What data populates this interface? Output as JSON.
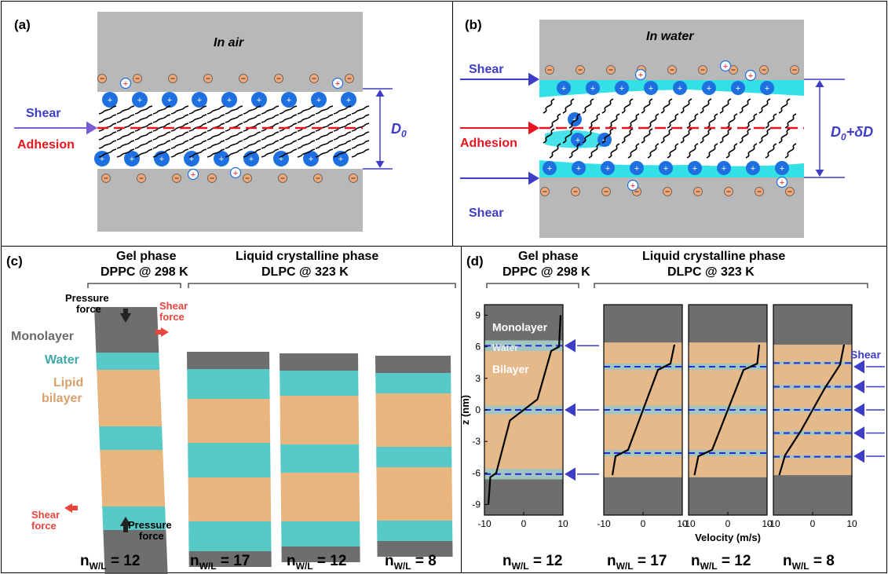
{
  "panel_a": {
    "letter": "(a)",
    "medium": "In air",
    "shear": "Shear",
    "adhesion": "Adhesion",
    "distance": "D",
    "distance_sub": "0"
  },
  "panel_b": {
    "letter": "(b)",
    "medium": "In water",
    "shear_top": "Shear",
    "shear_bottom": "Shear",
    "adhesion": "Adhesion",
    "distance": "D",
    "distance_sub": "0",
    "distance_suffix": "+δD"
  },
  "panel_c": {
    "letter": "(c)",
    "gel_title": "Gel phase",
    "gel_subtitle": "DPPC @ 298 K",
    "lc_title": "Liquid crystalline phase",
    "lc_subtitle": "DLPC @ 323 K",
    "pressure_top": "Pressure",
    "pressure_top2": "force",
    "shear_top": "Shear",
    "shear_top2": "force",
    "monolayer": "Monolayer",
    "water": "Water",
    "lipid": "Lipid",
    "bilayer": "bilayer",
    "shear_bottom": "Shear",
    "shear_bottom2": "force",
    "pressure_bottom": "Pressure",
    "pressure_bottom2": "force",
    "n_labels": [
      "12",
      "17",
      "12",
      "8"
    ]
  },
  "panel_d": {
    "letter": "(d)",
    "gel_title": "Gel phase",
    "gel_subtitle": "DPPC @ 298 K",
    "lc_title": "Liquid crystalline phase",
    "lc_subtitle": "DLPC @ 323 K",
    "monolayer": "Monolayer",
    "water": "Water",
    "bilayer": "Bilayer",
    "shear": "Shear",
    "ylabel": "z (nm)",
    "xlabel": "Velocity (m/s)",
    "n_labels": [
      "12",
      "17",
      "12",
      "8"
    ]
  },
  "n_prefix": "n",
  "n_sub": "W/L",
  "n_eq": " = ",
  "colors": {
    "shear_arrow": "#3d3dc8",
    "adhesion": "#e8141e",
    "ion_blue": "#1e6fe0",
    "counter_ion": "#f0a878",
    "water_cyan": "#33e0e6",
    "gray_surface": "#b8b8b8",
    "bilayer_tan": "#e6b98a",
    "water_band": "#9fc6c1",
    "monolayer_dark": "#6e6e6e"
  },
  "chart_data": {
    "type": "line",
    "ylabel": "z (nm)",
    "xlabel": "Velocity (m/s)",
    "panels": [
      {
        "n_wl": "12",
        "xlim": [
          -10,
          10
        ],
        "ylim": [
          -10,
          10
        ],
        "xticks": [
          -10,
          0,
          10
        ],
        "yticks": [
          -9,
          -6,
          -3,
          0,
          3,
          6,
          9
        ],
        "z": [
          -9,
          -6.4,
          -6,
          -1,
          0,
          1,
          5.6,
          6,
          9
        ],
        "v": [
          -9,
          -8.5,
          -7,
          -3.5,
          0,
          3.5,
          7,
          9,
          9.4
        ]
      },
      {
        "n_wl": "17",
        "xlim": [
          -10,
          10
        ],
        "ylim": [
          -10,
          10
        ],
        "xticks": [
          -10,
          0,
          10
        ],
        "z": [
          -6.2,
          -4.4,
          -3.8,
          0,
          3.8,
          4.4,
          6.2
        ],
        "v": [
          -7.8,
          -7,
          -3.8,
          0,
          3.8,
          7,
          8
        ]
      },
      {
        "n_wl": "12",
        "xlim": [
          -10,
          10
        ],
        "ylim": [
          -10,
          10
        ],
        "xticks": [
          -10,
          0,
          10
        ],
        "z": [
          -6.2,
          -4.4,
          -3.8,
          0,
          3.8,
          4.4,
          6.2
        ],
        "v": [
          -8.5,
          -7.5,
          -4,
          0,
          4,
          7.5,
          8
        ]
      },
      {
        "n_wl": "8",
        "xlim": [
          -10,
          10
        ],
        "ylim": [
          -10,
          10
        ],
        "xticks": [
          -10,
          0,
          10
        ],
        "z": [
          -6.2,
          -4.3,
          -2,
          0,
          2,
          4.3,
          6.2
        ],
        "v": [
          -8.5,
          -7,
          -3,
          0,
          3,
          7,
          8
        ]
      }
    ]
  }
}
